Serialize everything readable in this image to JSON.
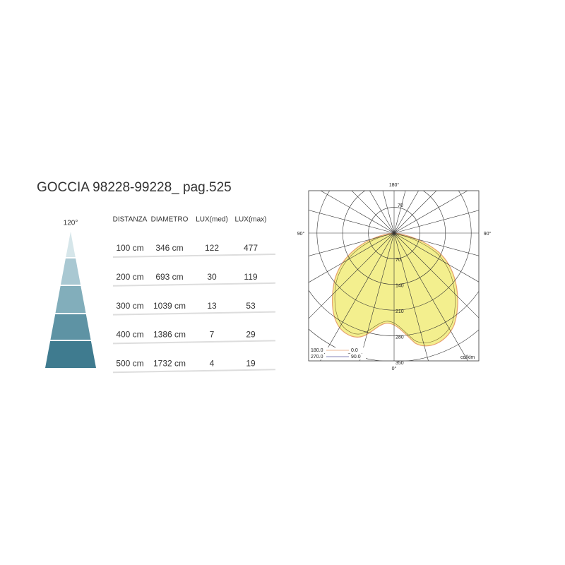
{
  "header": {
    "title": "GOCCIA 98228-99228_ pag.525"
  },
  "beam": {
    "angle": "120°"
  },
  "table": {
    "headers": [
      "DISTANZA",
      "DIAMETRO",
      "LUX(med)",
      "LUX(max)"
    ],
    "rows": [
      [
        "100 cm",
        "346 cm",
        "122",
        "477"
      ],
      [
        "200 cm",
        "693 cm",
        "30",
        "119"
      ],
      [
        "300 cm",
        "1039 cm",
        "13",
        "53"
      ],
      [
        "400 cm",
        "1386 cm",
        "7",
        "29"
      ],
      [
        "500 cm",
        "1732 cm",
        "4",
        "19"
      ]
    ]
  },
  "polar": {
    "top": "180°",
    "left": "90°",
    "right": "90°",
    "bottom": "0°",
    "upper_ring_labels": [
      "70"
    ],
    "ring_labels": [
      "70",
      "140",
      "210",
      "280",
      "350"
    ],
    "legend": [
      [
        "180.0",
        "0.0"
      ],
      [
        "270.0",
        "90.0"
      ]
    ],
    "unit": "cd/klm"
  }
}
